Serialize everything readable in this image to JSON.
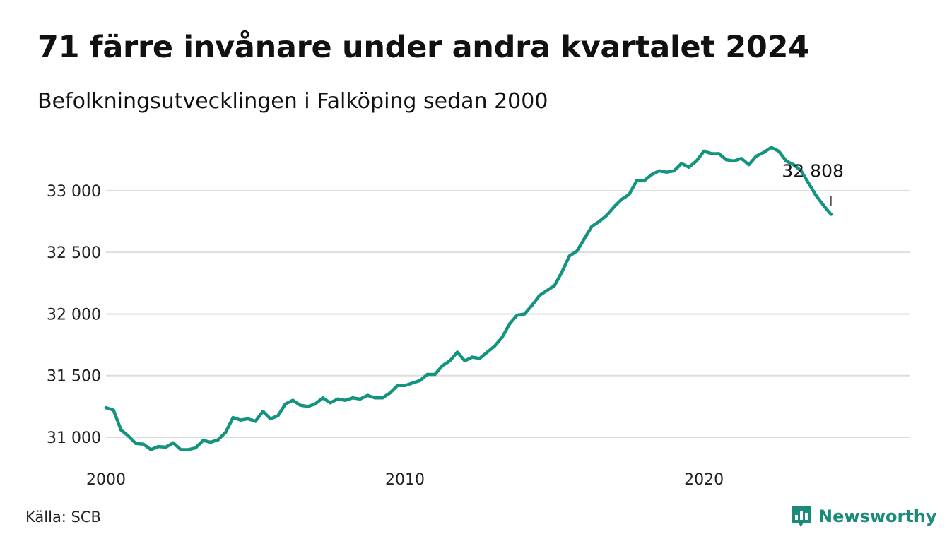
{
  "colors": {
    "line": "#14937f",
    "grid": "#dddddd",
    "brand": "#1b8a78"
  },
  "header": {
    "title": "71 färre invånare under andra kvartalet 2024",
    "subtitle": "Befolkningsutvecklingen i Falköping sedan 2000"
  },
  "footer": {
    "source": "Källa: SCB",
    "brand_name": "Newsworthy",
    "brand_icon": "bar-chart-speech-icon"
  },
  "chart_data": {
    "type": "line",
    "title": "71 färre invånare under andra kvartalet 2024",
    "subtitle": "Befolkningsutvecklingen i Falköping sedan 2000",
    "xlabel": "",
    "ylabel": "",
    "x_ticks": [
      {
        "value": 2000,
        "label": "2000"
      },
      {
        "value": 2010,
        "label": "2010"
      },
      {
        "value": 2020,
        "label": "2020"
      }
    ],
    "y_ticks": [
      {
        "value": 31000,
        "label": "31 000"
      },
      {
        "value": 31500,
        "label": "31 500"
      },
      {
        "value": 32000,
        "label": "32 000"
      },
      {
        "value": 32500,
        "label": "32 500"
      },
      {
        "value": 33000,
        "label": "33 000"
      }
    ],
    "xlim": [
      2000,
      2026.9
    ],
    "ylim": [
      30880,
      33400
    ],
    "grid": "horizontal",
    "end_label": "32 808",
    "series": [
      {
        "x": [
          2000.0,
          2000.25,
          2000.5,
          2000.75,
          2001.0,
          2001.25,
          2001.5,
          2001.75,
          2002.0,
          2002.25,
          2002.5,
          2002.75,
          2003.0,
          2003.25,
          2003.5,
          2003.75,
          2004.0,
          2004.25,
          2004.5,
          2004.75,
          2005.0,
          2005.25,
          2005.5,
          2005.75,
          2006.0,
          2006.25,
          2006.5,
          2006.75,
          2007.0,
          2007.25,
          2007.5,
          2007.75,
          2008.0,
          2008.25,
          2008.5,
          2008.75,
          2009.0,
          2009.25,
          2009.5,
          2009.75,
          2010.0,
          2010.25,
          2010.5,
          2010.75,
          2011.0,
          2011.25,
          2011.5,
          2011.75,
          2012.0,
          2012.25,
          2012.5,
          2012.75,
          2013.0,
          2013.25,
          2013.5,
          2013.75,
          2014.0,
          2014.25,
          2014.5,
          2014.75,
          2015.0,
          2015.25,
          2015.5,
          2015.75,
          2016.0,
          2016.25,
          2016.5,
          2016.75,
          2017.0,
          2017.25,
          2017.5,
          2017.75,
          2018.0,
          2018.25,
          2018.5,
          2018.75,
          2019.0,
          2019.25,
          2019.5,
          2019.75,
          2020.0,
          2020.25,
          2020.5,
          2020.75,
          2021.0,
          2021.25,
          2021.5,
          2021.75,
          2022.0,
          2022.25,
          2022.5,
          2022.75,
          2023.0,
          2023.25,
          2023.5,
          2023.75,
          2024.0,
          2024.25
        ],
        "values": [
          31240,
          31220,
          31060,
          31010,
          30950,
          30945,
          30900,
          30925,
          30920,
          30955,
          30900,
          30900,
          30915,
          30975,
          30960,
          30980,
          31040,
          31160,
          31140,
          31150,
          31130,
          31210,
          31150,
          31175,
          31270,
          31300,
          31260,
          31250,
          31270,
          31320,
          31280,
          31310,
          31300,
          31320,
          31310,
          31340,
          31320,
          31320,
          31360,
          31420,
          31420,
          31440,
          31460,
          31510,
          31510,
          31580,
          31620,
          31690,
          31620,
          31650,
          31640,
          31690,
          31740,
          31810,
          31920,
          31990,
          32000,
          32070,
          32150,
          32190,
          32230,
          32340,
          32470,
          32510,
          32610,
          32710,
          32750,
          32800,
          32870,
          32930,
          32970,
          33080,
          33080,
          33130,
          33160,
          33150,
          33160,
          33220,
          33190,
          33240,
          33320,
          33300,
          33300,
          33250,
          33240,
          33260,
          33210,
          33280,
          33310,
          33350,
          33320,
          33240,
          33210,
          33160,
          33060,
          32960,
          32880,
          32808
        ]
      }
    ]
  }
}
